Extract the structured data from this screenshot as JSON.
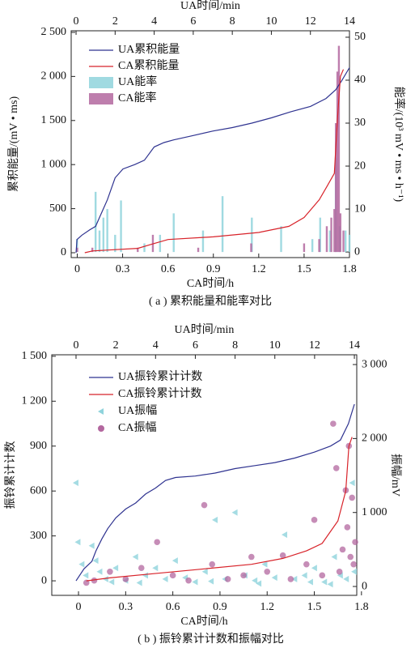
{
  "chart_data": [
    {
      "type": "combo",
      "caption": "( a ) 累积能量和能率对比",
      "xlabel": "CA时间/h",
      "x2label": "UA时间/min",
      "ylabel": "累积能量/(mV • ms)",
      "y2label": "能率/(10³ mV • ms • h⁻¹)",
      "xlim": [
        -0.04,
        1.8
      ],
      "xticks": [
        0,
        0.3,
        0.6,
        0.9,
        1.2,
        1.5,
        1.8
      ],
      "x2lim": [
        -0.25,
        14
      ],
      "x2ticks": [
        0,
        2,
        4,
        6,
        8,
        10,
        12,
        14
      ],
      "ylim": [
        -55,
        2518
      ],
      "yticks": [
        0,
        500,
        {
          "value": 1000,
          "label": "1 000"
        },
        {
          "value": 1500,
          "label": "1 500"
        },
        {
          "value": 2000,
          "label": "2 000"
        },
        {
          "value": 2500,
          "label": "2 500"
        }
      ],
      "y2lim": [
        -1.3,
        51.5
      ],
      "y2ticks": [
        0,
        10,
        20,
        30,
        40,
        50
      ],
      "series": [
        {
          "name": "UA累积能量",
          "kind": "line",
          "xaxis": "top",
          "color": "#2f3390",
          "x": [
            0,
            0.05,
            0.3,
            0.7,
            1.0,
            1.2,
            1.6,
            2.0,
            2.4,
            3.0,
            3.5,
            4.0,
            4.5,
            5.0,
            6.0,
            7.0,
            8.0,
            9.0,
            10.0,
            11.0,
            12.0,
            12.8,
            13.3,
            13.6,
            14.0
          ],
          "values": [
            0,
            150,
            200,
            260,
            300,
            400,
            600,
            850,
            950,
            1000,
            1050,
            1200,
            1250,
            1280,
            1330,
            1380,
            1420,
            1470,
            1530,
            1600,
            1660,
            1750,
            1850,
            1950,
            2100
          ]
        },
        {
          "name": "CA累积能量",
          "kind": "line",
          "xaxis": "bottom",
          "color": "#d8232a",
          "x": [
            0.05,
            0.1,
            0.4,
            0.5,
            0.6,
            0.9,
            1.2,
            1.4,
            1.5,
            1.6,
            1.65,
            1.7,
            1.72,
            1.74,
            1.76
          ],
          "values": [
            0,
            20,
            50,
            100,
            150,
            180,
            230,
            300,
            400,
            600,
            750,
            900,
            1500,
            2000,
            2080
          ]
        },
        {
          "name": "UA能率",
          "kind": "bar",
          "xaxis": "top",
          "axis": "y2",
          "color": "#8fd3dc",
          "x": [
            0.05,
            1.0,
            1.2,
            1.4,
            1.6,
            2.0,
            2.3,
            3.5,
            4.3,
            5.0,
            6.5,
            7.5,
            9.0,
            10.5,
            12.1,
            12.5,
            13.0,
            13.3,
            13.5,
            13.8,
            14.0
          ],
          "values": [
            3,
            14,
            5,
            8,
            10,
            4,
            12,
            2,
            4,
            9,
            5,
            13,
            8,
            6,
            3,
            8,
            5,
            22,
            6,
            5,
            4
          ]
        },
        {
          "name": "CA能率",
          "kind": "bar",
          "xaxis": "bottom",
          "axis": "y2",
          "color": "#b3679f",
          "x": [
            0.0,
            0.1,
            0.4,
            0.5,
            0.8,
            1.15,
            1.5,
            1.6,
            1.65,
            1.68,
            1.7,
            1.71,
            1.72,
            1.73,
            1.74,
            1.76
          ],
          "values": [
            1,
            1,
            1,
            4,
            1,
            2,
            2,
            3,
            6,
            8,
            10,
            30,
            42,
            48,
            9,
            5
          ]
        }
      ]
    },
    {
      "type": "combo",
      "caption": "( b ) 振铃累计计数和振幅对比",
      "xlabel": "CA时间/h",
      "x2label": "UA时间/min",
      "ylabel": "振铃累计计数",
      "y2label": "振幅/mV",
      "xlim": [
        -0.17,
        1.77
      ],
      "xticks": [
        0,
        0.3,
        0.6,
        0.9,
        1.2,
        1.5,
        1.8
      ],
      "x2lim": [
        -1.22,
        14.12
      ],
      "x2ticks": [
        0,
        2,
        4,
        6,
        8,
        10,
        12,
        14
      ],
      "ylim": [
        -97,
        1510
      ],
      "yticks": [
        0,
        300,
        600,
        900,
        {
          "value": 1200,
          "label": "1 200"
        },
        {
          "value": 1500,
          "label": "1 500"
        }
      ],
      "y2lim": [
        -120,
        3132
      ],
      "y2ticks": [
        0,
        {
          "value": 1000,
          "label": "1 000"
        },
        {
          "value": 2000,
          "label": "2 000"
        },
        {
          "value": 3000,
          "label": "3 000"
        }
      ],
      "series": [
        {
          "name": "UA振铃累计计数",
          "kind": "line",
          "xaxis": "top",
          "color": "#2f3390",
          "x": [
            0,
            0.4,
            0.8,
            1.0,
            1.3,
            1.6,
            2.0,
            2.5,
            3.0,
            3.5,
            4.0,
            4.5,
            5.0,
            6.0,
            7.0,
            8.0,
            9.0,
            10.0,
            11.0,
            12.0,
            12.8,
            13.3,
            13.7,
            14.0
          ],
          "values": [
            0,
            80,
            130,
            200,
            280,
            350,
            420,
            480,
            520,
            580,
            620,
            670,
            690,
            700,
            720,
            750,
            770,
            790,
            820,
            860,
            900,
            940,
            1050,
            1180
          ]
        },
        {
          "name": "CA振铃累计计数",
          "kind": "line",
          "xaxis": "bottom",
          "color": "#d8232a",
          "x": [
            0.05,
            0.2,
            0.5,
            0.8,
            1.1,
            1.3,
            1.45,
            1.55,
            1.65,
            1.7,
            1.72,
            1.74
          ],
          "values": [
            0,
            20,
            50,
            80,
            110,
            150,
            200,
            250,
            400,
            600,
            900,
            960
          ]
        },
        {
          "name": "UA振幅",
          "kind": "scatter",
          "marker": "triangle-left",
          "xaxis": "top",
          "axis": "y2",
          "color": "#8fd3dc",
          "x": [
            0.0,
            0.1,
            0.3,
            0.5,
            0.8,
            1.0,
            1.2,
            1.5,
            1.8,
            2.0,
            2.5,
            3.0,
            3.2,
            3.5,
            4.0,
            4.5,
            5.0,
            5.5,
            6.0,
            6.5,
            6.8,
            7.0,
            7.5,
            8.0,
            8.5,
            9.0,
            9.2,
            9.5,
            10.0,
            10.5,
            11.0,
            11.5,
            11.8,
            12.0,
            12.5,
            12.8,
            13.0,
            13.3,
            13.6,
            13.9,
            14.0
          ],
          "values": [
            1400,
            600,
            300,
            150,
            550,
            350,
            200,
            100,
            60,
            250,
            80,
            400,
            50,
            150,
            250,
            100,
            350,
            120,
            60,
            200,
            70,
            900,
            100,
            1000,
            150,
            80,
            40,
            300,
            120,
            700,
            100,
            150,
            60,
            250,
            60,
            30,
            400,
            150,
            100,
            1400,
            200
          ]
        },
        {
          "name": "CA振幅",
          "kind": "scatter",
          "marker": "circle",
          "xaxis": "bottom",
          "axis": "y2",
          "color": "#b3679f",
          "x": [
            0.05,
            0.1,
            0.2,
            0.3,
            0.4,
            0.5,
            0.6,
            0.7,
            0.8,
            0.85,
            0.95,
            1.05,
            1.1,
            1.2,
            1.3,
            1.35,
            1.45,
            1.5,
            1.55,
            1.62,
            1.64,
            1.66,
            1.68,
            1.7,
            1.71,
            1.72,
            1.73,
            1.74,
            1.75,
            1.76
          ],
          "values": [
            50,
            80,
            200,
            100,
            250,
            600,
            150,
            80,
            1100,
            300,
            100,
            150,
            400,
            200,
            420,
            100,
            300,
            900,
            150,
            2200,
            1600,
            200,
            500,
            1300,
            800,
            1900,
            400,
            1200,
            300,
            600
          ]
        }
      ]
    }
  ]
}
